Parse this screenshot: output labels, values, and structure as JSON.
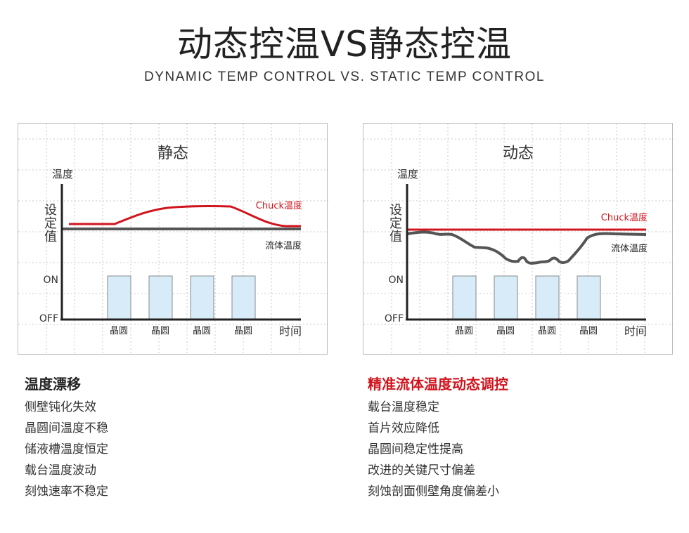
{
  "header": {
    "title": "动态控温VS静态控温",
    "subtitle": "DYNAMIC TEMP CONTROL VS. STATIC TEMP CONTROL"
  },
  "colors": {
    "chuck": "#d0141d",
    "fluid": "#555555",
    "wafer_fill": "#d7ecf8",
    "wafer_stroke": "#8a8a8a",
    "accent": "#d0141d"
  },
  "icons": [],
  "panels": {
    "static": {
      "title": "静态",
      "y_axis_label": "温度",
      "setpoint_label": [
        "设",
        "定",
        "值"
      ],
      "on_label": "ON",
      "off_label": "OFF",
      "x_axis_label": "时间",
      "chuck_label": "Chuck温度",
      "fluid_label": "流体温度",
      "wafers": [
        "晶圆",
        "晶圆",
        "晶圆",
        "晶圆"
      ]
    },
    "dynamic": {
      "title": "动态",
      "y_axis_label": "温度",
      "setpoint_label": [
        "设",
        "定",
        "值"
      ],
      "on_label": "ON",
      "off_label": "OFF",
      "x_axis_label": "时间",
      "chuck_label": "Chuck温度",
      "fluid_label": "流体温度",
      "wafers": [
        "晶圆",
        "晶圆",
        "晶圆",
        "晶圆"
      ]
    }
  },
  "lists": {
    "left": {
      "heading": "温度漂移",
      "items": [
        "侧壁钝化失效",
        "晶圆间温度不稳",
        "储液槽温度恒定",
        "载台温度波动",
        "刻蚀速率不稳定"
      ]
    },
    "right": {
      "heading": "精准流体温度动态调控",
      "items": [
        "载台温度稳定",
        "首片效应降低",
        "晶圆间稳定性提高",
        "改进的关键尺寸偏差",
        "刻蚀剖面侧壁角度偏差小"
      ]
    }
  }
}
